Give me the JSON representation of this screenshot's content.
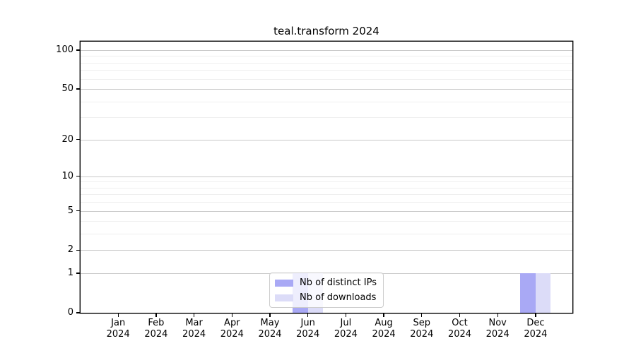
{
  "chart_data": {
    "type": "bar",
    "title": "teal.transform 2024",
    "categories": [
      "Jan",
      "Feb",
      "Mar",
      "Apr",
      "May",
      "Jun",
      "Jul",
      "Aug",
      "Sep",
      "Oct",
      "Nov",
      "Dec"
    ],
    "year": "2024",
    "series": [
      {
        "name": "Nb of distinct IPs",
        "color": "#a9a9f5",
        "values": [
          0,
          0,
          0,
          0,
          0,
          1,
          0,
          0,
          0,
          0,
          0,
          1
        ]
      },
      {
        "name": "Nb of downloads",
        "color": "#dcdcf8",
        "values": [
          0,
          0,
          0,
          0,
          0,
          1,
          0,
          0,
          0,
          0,
          0,
          1
        ]
      }
    ],
    "yscale": "log1p",
    "ylim": [
      0,
      116
    ],
    "y_major_ticks": [
      0,
      1,
      2,
      5,
      10,
      20,
      50,
      100
    ],
    "y_minor_ticks": [
      3,
      4,
      6,
      7,
      8,
      9,
      30,
      40,
      60,
      70,
      80,
      90
    ],
    "grid": "horizontal",
    "legend_position": "lower center",
    "colors": {
      "major_grid": "#c9c9c9",
      "minor_grid": "#efefef",
      "spine": "#000000",
      "background": "#ffffff"
    }
  }
}
